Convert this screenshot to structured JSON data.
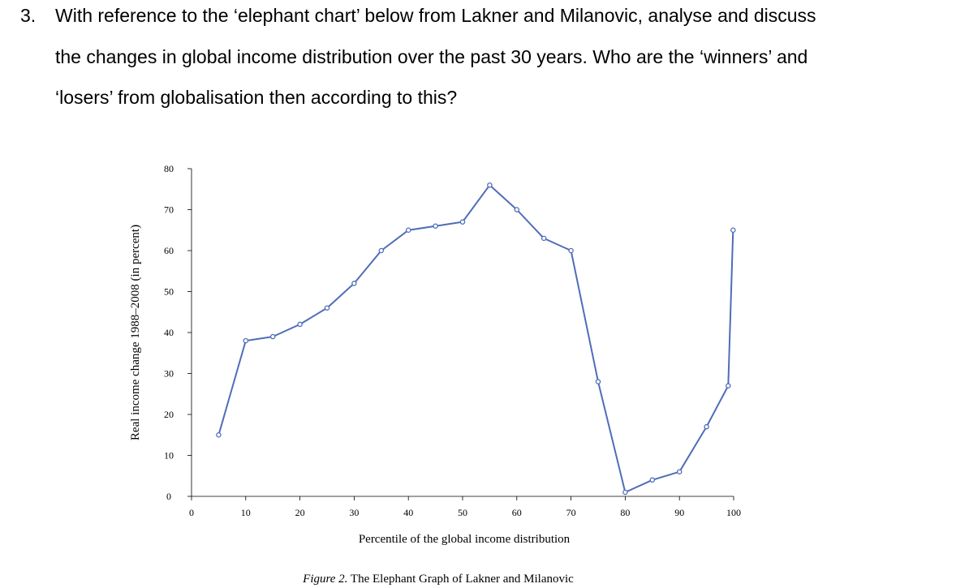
{
  "question": {
    "number": "3.",
    "line1": "With reference to the ‘elephant chart’ below from Lakner and Milanovic, analyse and discuss",
    "line2": "the changes in global income distribution over the past 30 years. Who are the ‘winners’ and",
    "line3": "‘losers’ from globalisation then according to this?"
  },
  "figure": {
    "caption_label": "Figure 2.",
    "caption_text": " The Elephant Graph of Lakner and Milanovic"
  },
  "chart_data": {
    "type": "line",
    "xlabel": "Percentile of the global income distribution",
    "ylabel": "Real income change 1988–2008 (in percent)",
    "xlim": [
      0,
      100
    ],
    "ylim": [
      0,
      80
    ],
    "xticks": [
      0,
      10,
      20,
      30,
      40,
      50,
      60,
      70,
      80,
      90,
      100
    ],
    "yticks": [
      0,
      10,
      20,
      30,
      40,
      50,
      60,
      70,
      80
    ],
    "grid": false,
    "line_color": "#4f6db8",
    "series": [
      {
        "x": [
          5,
          10,
          15,
          20,
          25,
          30,
          35,
          40,
          45,
          50,
          55,
          60,
          65,
          70,
          75,
          80,
          85,
          90,
          95,
          99,
          99.9
        ],
        "y": [
          15,
          38,
          39,
          42,
          46,
          52,
          60,
          65,
          66,
          67,
          76,
          70,
          63,
          60,
          28,
          1,
          4,
          6,
          17,
          27,
          65
        ]
      }
    ]
  }
}
